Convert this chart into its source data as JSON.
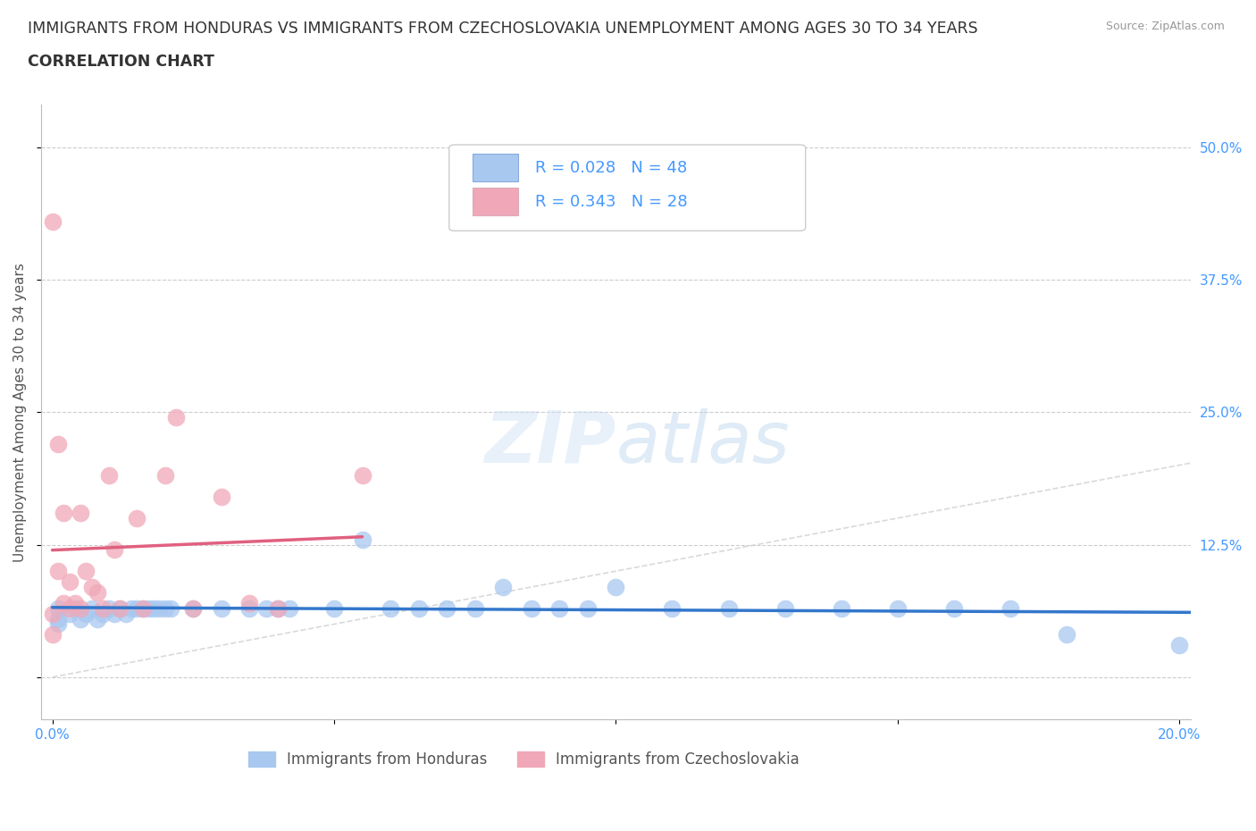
{
  "title_line1": "IMMIGRANTS FROM HONDURAS VS IMMIGRANTS FROM CZECHOSLOVAKIA UNEMPLOYMENT AMONG AGES 30 TO 34 YEARS",
  "title_line2": "CORRELATION CHART",
  "source": "Source: ZipAtlas.com",
  "ylabel": "Unemployment Among Ages 30 to 34 years",
  "xlim": [
    -0.002,
    0.202
  ],
  "ylim": [
    -0.04,
    0.54
  ],
  "yticks": [
    0.0,
    0.125,
    0.25,
    0.375,
    0.5
  ],
  "ytick_labels": [
    "",
    "12.5%",
    "25.0%",
    "37.5%",
    "50.0%"
  ],
  "xticks": [
    0.0,
    0.05,
    0.1,
    0.15,
    0.2
  ],
  "xtick_labels": [
    "0.0%",
    "",
    "",
    "",
    "20.0%"
  ],
  "watermark_zip": "ZIP",
  "watermark_atlas": "atlas",
  "legend_r1": "R = 0.028   N = 48",
  "legend_r2": "R = 0.343   N = 28",
  "color_honduras": "#a8c8f0",
  "color_czechoslovakia": "#f0a8b8",
  "line_color_honduras": "#3377cc",
  "line_color_czechoslovakia": "#e06080",
  "diagonal_color": "#d0d0d0",
  "tick_color": "#4499ff",
  "title_color": "#333333",
  "source_color": "#999999",
  "honduras_x": [
    0.001,
    0.001,
    0.001,
    0.003,
    0.004,
    0.005,
    0.006,
    0.007,
    0.008,
    0.009,
    0.01,
    0.011,
    0.012,
    0.013,
    0.014,
    0.015,
    0.016,
    0.017,
    0.018,
    0.019,
    0.02,
    0.021,
    0.025,
    0.03,
    0.035,
    0.038,
    0.04,
    0.042,
    0.05,
    0.055,
    0.06,
    0.065,
    0.07,
    0.075,
    0.08,
    0.085,
    0.09,
    0.095,
    0.1,
    0.11,
    0.12,
    0.13,
    0.14,
    0.15,
    0.16,
    0.17,
    0.18,
    0.2
  ],
  "honduras_y": [
    0.055,
    0.065,
    0.05,
    0.06,
    0.065,
    0.055,
    0.06,
    0.065,
    0.055,
    0.06,
    0.065,
    0.06,
    0.065,
    0.06,
    0.065,
    0.065,
    0.065,
    0.065,
    0.065,
    0.065,
    0.065,
    0.065,
    0.065,
    0.065,
    0.065,
    0.065,
    0.065,
    0.065,
    0.065,
    0.13,
    0.065,
    0.065,
    0.065,
    0.065,
    0.085,
    0.065,
    0.065,
    0.065,
    0.085,
    0.065,
    0.065,
    0.065,
    0.065,
    0.065,
    0.065,
    0.065,
    0.04,
    0.03
  ],
  "czechoslovakia_x": [
    0.0,
    0.0,
    0.0,
    0.001,
    0.001,
    0.002,
    0.002,
    0.003,
    0.003,
    0.004,
    0.005,
    0.005,
    0.006,
    0.007,
    0.008,
    0.009,
    0.01,
    0.011,
    0.012,
    0.015,
    0.016,
    0.02,
    0.022,
    0.025,
    0.03,
    0.035,
    0.04,
    0.055
  ],
  "czechoslovakia_y": [
    0.43,
    0.06,
    0.04,
    0.22,
    0.1,
    0.155,
    0.07,
    0.09,
    0.065,
    0.07,
    0.155,
    0.065,
    0.1,
    0.085,
    0.08,
    0.065,
    0.19,
    0.12,
    0.065,
    0.15,
    0.065,
    0.19,
    0.245,
    0.065,
    0.17,
    0.07,
    0.065,
    0.19
  ],
  "title_fontsize": 12.5,
  "axis_label_fontsize": 11,
  "tick_fontsize": 11,
  "legend_fontsize": 13
}
